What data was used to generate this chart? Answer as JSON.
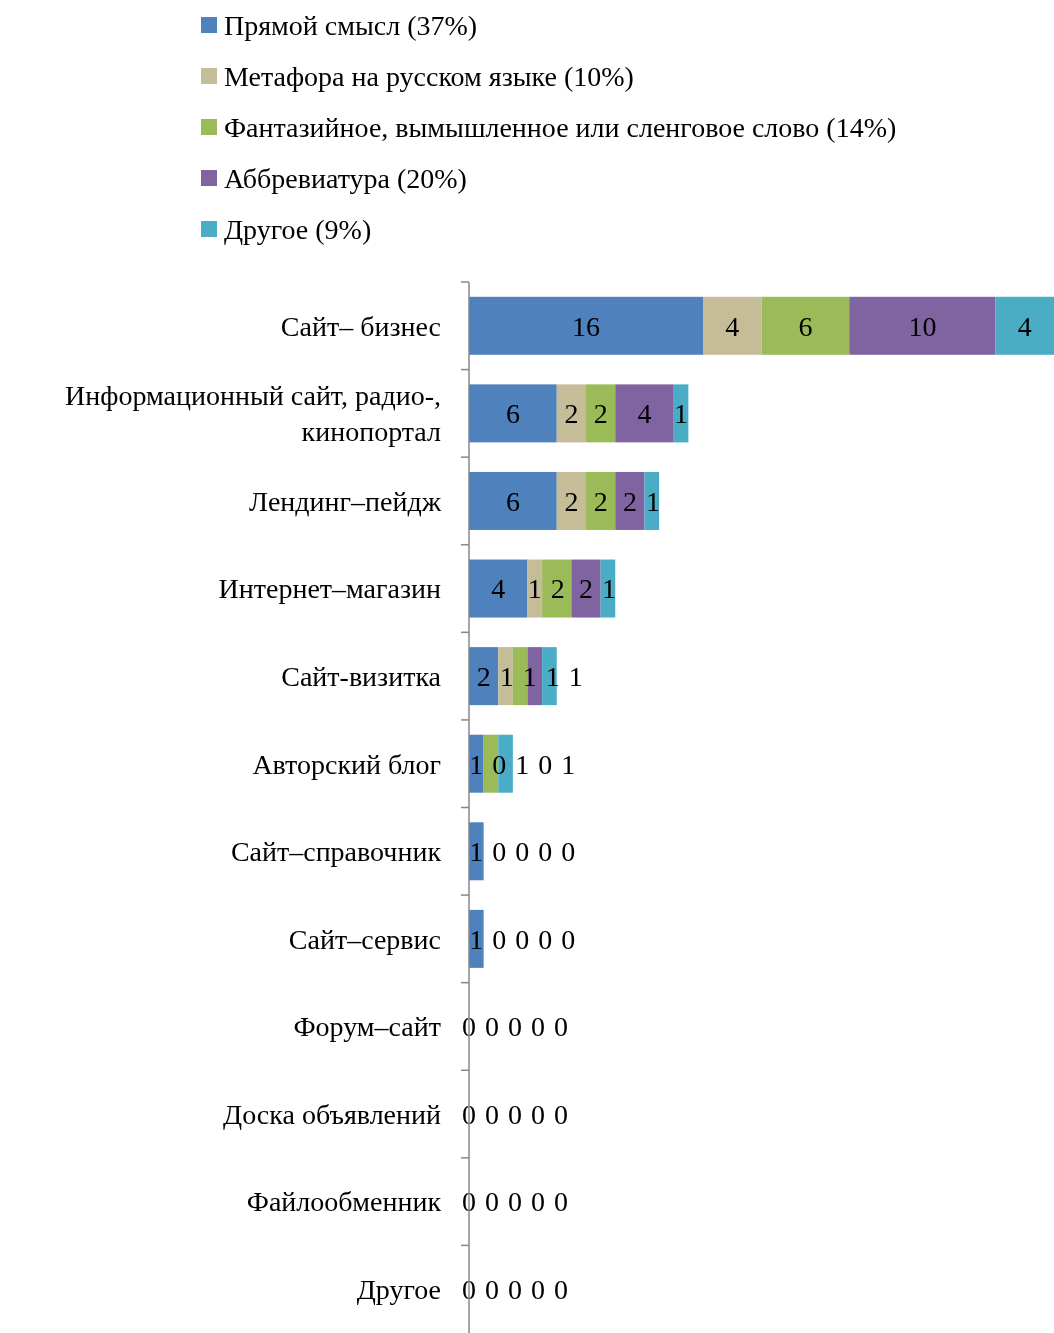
{
  "chart_data": {
    "type": "bar",
    "orientation": "horizontal",
    "stacked": true,
    "data_labels": true,
    "legend": "top",
    "grid": false,
    "categories": [
      "Сайт– бизнес",
      "Информационный сайт, радио-, кинопортал",
      "Лендинг–пейдж",
      "Интернет–магазин",
      "Сайт-визитка",
      "Авторский блог",
      "Сайт–справочник",
      "Сайт–сервис",
      "Форум–сайт",
      "Доска объявлений",
      "Файлообменник",
      "Другое"
    ],
    "series": [
      {
        "name": "Прямой смысл (37%)",
        "color": "#4f81bd",
        "values": [
          16,
          6,
          6,
          4,
          2,
          1,
          1,
          1,
          0,
          0,
          0,
          0
        ]
      },
      {
        "name": "Метафора на русском языке (10%)",
        "color": "#c4bd97",
        "values": [
          4,
          2,
          2,
          1,
          1,
          0,
          0,
          0,
          0,
          0,
          0,
          0
        ]
      },
      {
        "name": "Фантазийное, вымышленное или сленговое слово (14%)",
        "color": "#9bbb59",
        "values": [
          6,
          2,
          2,
          2,
          1,
          1,
          0,
          0,
          0,
          0,
          0,
          0
        ]
      },
      {
        "name": "Аббревиатура (20%)",
        "color": "#8064a2",
        "values": [
          10,
          4,
          2,
          2,
          1,
          0,
          0,
          0,
          0,
          0,
          0,
          0
        ]
      },
      {
        "name": "Другое (9%)",
        "color": "#4bacc6",
        "values": [
          4,
          1,
          1,
          1,
          1,
          1,
          0,
          0,
          0,
          0,
          0,
          0
        ]
      }
    ]
  }
}
